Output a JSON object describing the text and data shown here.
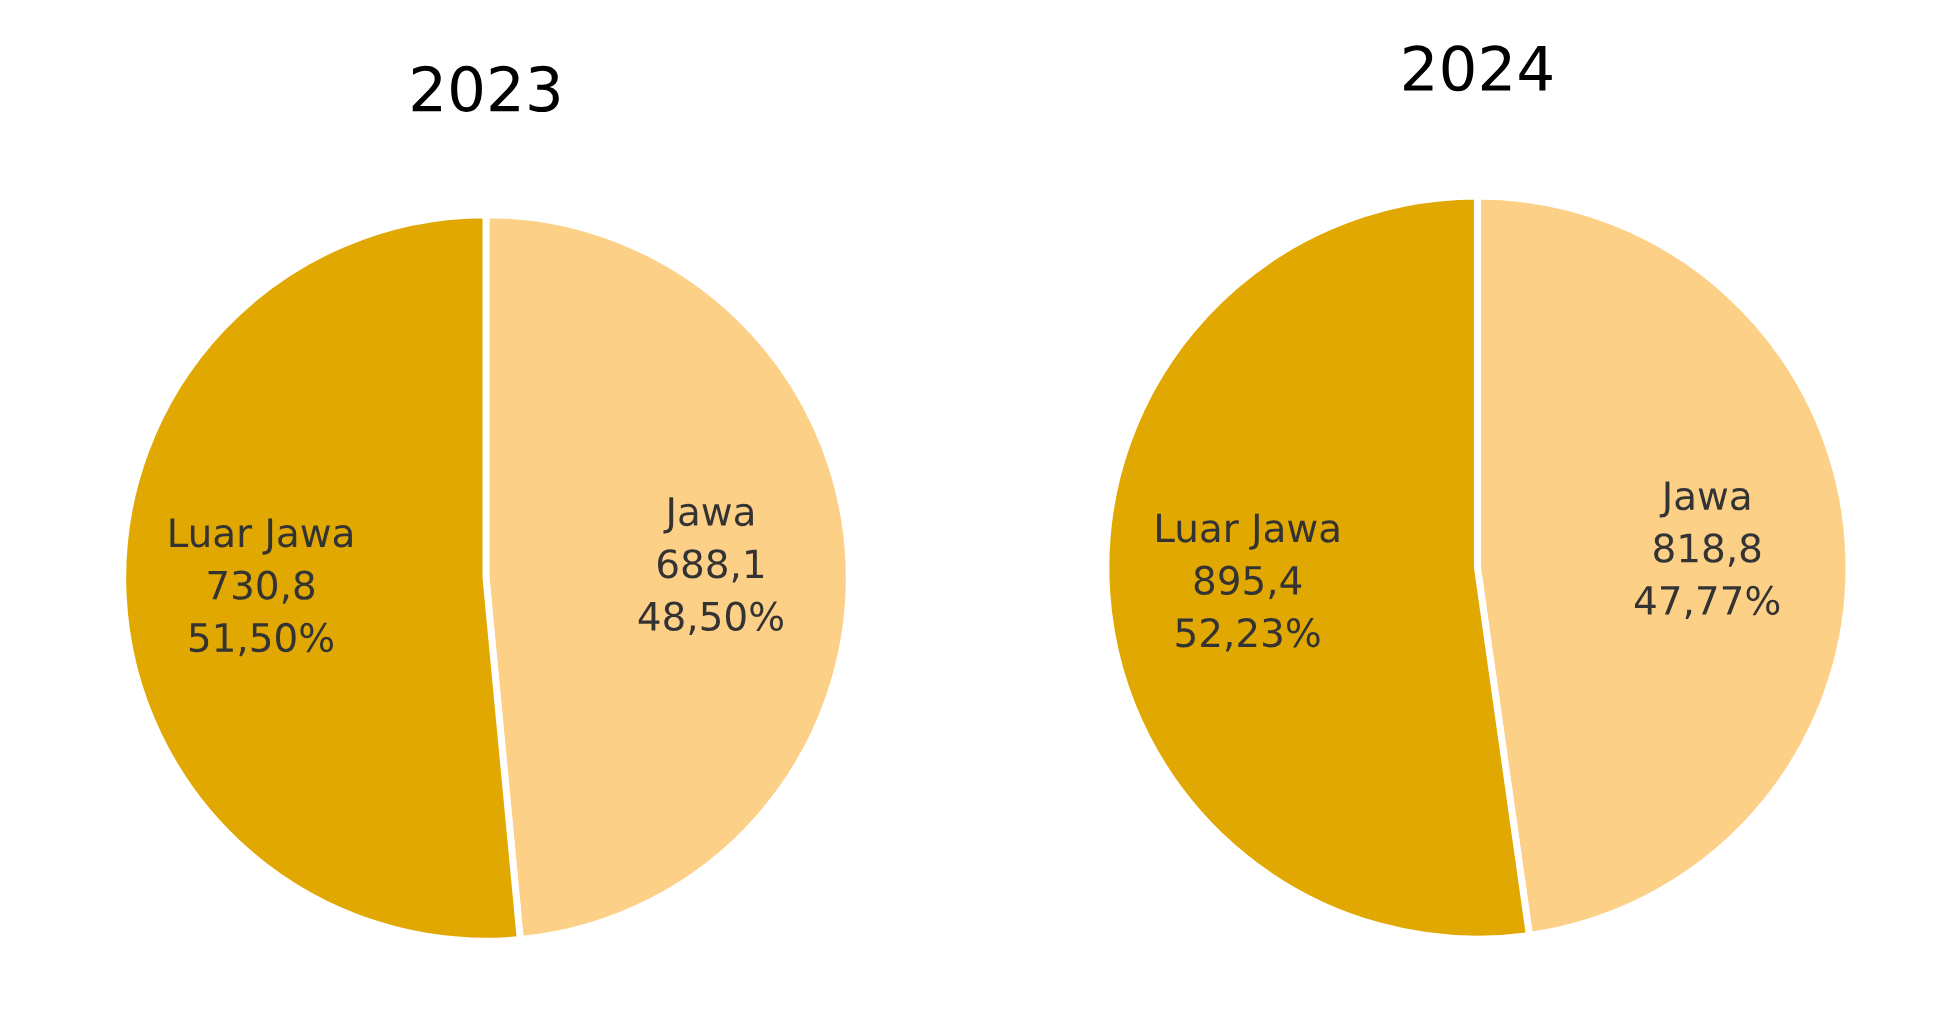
{
  "chart_data": [
    {
      "type": "pie",
      "title": "2023",
      "categories": [
        "Jawa",
        "Luar Jawa"
      ],
      "values": [
        688.1,
        730.8
      ],
      "colors": [
        "#fdd088",
        "#e0a800"
      ],
      "value_labels": [
        "688,1\n48,50%",
        "730,8\n51,50%"
      ]
    },
    {
      "type": "pie",
      "title": "2024",
      "categories": [
        "Jawa",
        "Luar Jawa"
      ],
      "values": [
        818.8,
        895.4
      ],
      "colors": [
        "#fdd088",
        "#e0a800"
      ],
      "value_labels": [
        "818,8\n47,77%",
        "895,4\n52,23%"
      ]
    }
  ]
}
